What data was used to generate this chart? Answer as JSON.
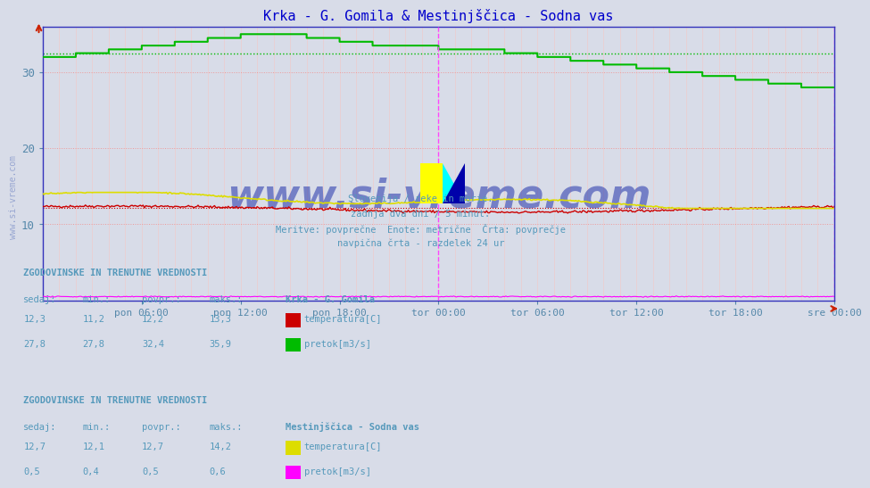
{
  "title": "Krka - G. Gomila & Mestinjščica - Sodna vas",
  "title_color": "#0000cc",
  "bg_color": "#d8dce8",
  "plot_bg_color": "#d8dce8",
  "ylim": [
    0,
    36
  ],
  "yticks": [
    10,
    20,
    30
  ],
  "tick_color": "#5588aa",
  "grid_h_color": "#ee9999",
  "grid_v_color": "#eecccc",
  "vline_color": "#ff44ff",
  "axis_color": "#3333bb",
  "subtitle_lines": [
    "Slovenija / reke in morje.",
    "zadnja dva dni / 5 minut.",
    "Meritve: povprečne  Enote: metrične  Črta: povprečje",
    "navpična črta - razdelek 24 ur"
  ],
  "subtitle_color": "#5599bb",
  "xtick_labels": [
    "pon 06:00",
    "pon 12:00",
    "pon 18:00",
    "tor 00:00",
    "tor 06:00",
    "tor 12:00",
    "tor 18:00",
    "sre 00:00"
  ],
  "krka_temp_color": "#cc0000",
  "krka_pretok_color": "#00bb00",
  "krka_pretok_avg": 32.4,
  "mestinjscica_temp_color": "#dddd00",
  "mestinjscica_pretok_color": "#ff00ff",
  "watermark": "www.si-vreme.com",
  "watermark_color": "#8899cc",
  "table1_header": "ZGODOVINSKE IN TRENUTNE VREDNOSTI",
  "table1_station": "Krka - G. Gomila",
  "table1_cols": [
    "sedaj:",
    "min.:",
    "povpr.:",
    "maks.:"
  ],
  "table1_rows": [
    {
      "sedaj": "12,3",
      "min": "11,2",
      "povpr": "12,2",
      "maks": "13,3",
      "label": "temperatura[C]",
      "color": "#cc0000"
    },
    {
      "sedaj": "27,8",
      "min": "27,8",
      "povpr": "32,4",
      "maks": "35,9",
      "label": "pretok[m3/s]",
      "color": "#00bb00"
    }
  ],
  "table2_header": "ZGODOVINSKE IN TRENUTNE VREDNOSTI",
  "table2_station": "Mestinjščica - Sodna vas",
  "table2_rows": [
    {
      "sedaj": "12,7",
      "min": "12,1",
      "povpr": "12,7",
      "maks": "14,2",
      "label": "temperatura[C]",
      "color": "#dddd00"
    },
    {
      "sedaj": "0,5",
      "min": "0,4",
      "povpr": "0,5",
      "maks": "0,6",
      "label": "pretok[m3/s]",
      "color": "#ff00ff"
    }
  ]
}
